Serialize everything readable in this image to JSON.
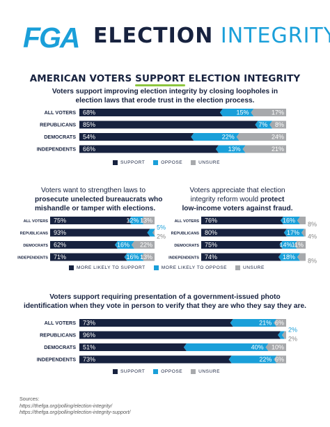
{
  "header": {
    "logo": "FGA",
    "title_bold": "ELECTION",
    "title_light": "INTEGRITY"
  },
  "colors": {
    "navy": "#17223f",
    "blue": "#1a9fd9",
    "gray": "#a7a9ac",
    "green_underline": "#8dc63f"
  },
  "main": {
    "title_pre": "AMERICAN VOTERS ",
    "title_underlined": "SUPPORT",
    "title_post": " ELECTION INTEGRITY",
    "subtitle_line1": "Voters support improving election integrity by closing loopholes in",
    "subtitle_line2": "election laws that erode trust in the election process."
  },
  "left": {
    "sub_line1": "Voters want to strengthen laws to",
    "sub_line2_bold": "prosecute unelected bureaucrats who",
    "sub_line3_bold": "mishandle or tamper with elections."
  },
  "right": {
    "sub_line1": "Voters appreciate that election",
    "sub_line2_pre": "integrity reform would ",
    "sub_line2_bold": "protect",
    "sub_line3_bold": "low-income voters against fraud."
  },
  "bottom": {
    "sub_line1": "Voters support requiring presentation of a government-issued photo",
    "sub_line2": "identification when they vote in person to verify that they are who they say they are."
  },
  "legends": {
    "support": "SUPPORT",
    "oppose": "OPPOSE",
    "unsure": "UNSURE",
    "more_support": "MORE LIKELY TO SUPPORT",
    "more_oppose": "MORE LIKELY TO OPPOSE"
  },
  "sources": {
    "label": "Sources:",
    "link1": "https://thefga.org/polling/election-integrity/",
    "link2": "https://thefga.org/polling/election-integrity-support/"
  },
  "chart_data": [
    {
      "type": "bar",
      "categories": [
        "ALL VOTERS",
        "REPUBLICANS",
        "DEMOCRATS",
        "INDEPENDENTS"
      ],
      "series": [
        {
          "name": "SUPPORT",
          "values": [
            68,
            85,
            54,
            66
          ]
        },
        {
          "name": "OPPOSE",
          "values": [
            15,
            7,
            22,
            13
          ]
        },
        {
          "name": "UNSURE",
          "values": [
            17,
            8,
            24,
            21
          ]
        }
      ]
    },
    {
      "type": "bar",
      "categories": [
        "ALL VOTERS",
        "REPUBLICANS",
        "DEMOCRATS",
        "INDEPENDENTS"
      ],
      "series": [
        {
          "name": "MORE LIKELY TO SUPPORT",
          "values": [
            75,
            93,
            62,
            71
          ]
        },
        {
          "name": "MORE LIKELY TO OPPOSE",
          "values": [
            12,
            5,
            16,
            16
          ]
        },
        {
          "name": "UNSURE",
          "values": [
            13,
            2,
            22,
            13
          ]
        }
      ]
    },
    {
      "type": "bar",
      "categories": [
        "ALL VOTERS",
        "REPUBLICANS",
        "DEMOCRATS",
        "INDEPENDENTS"
      ],
      "series": [
        {
          "name": "MORE LIKELY TO SUPPORT",
          "values": [
            76,
            80,
            75,
            74
          ]
        },
        {
          "name": "MORE LIKELY TO OPPOSE",
          "values": [
            16,
            17,
            14,
            18
          ]
        },
        {
          "name": "UNSURE",
          "values": [
            8,
            4,
            11,
            8
          ]
        }
      ]
    },
    {
      "type": "bar",
      "categories": [
        "ALL VOTERS",
        "REPUBLICANS",
        "DEMOCRATS",
        "INDEPENDENTS"
      ],
      "series": [
        {
          "name": "SUPPORT",
          "values": [
            73,
            96,
            51,
            73
          ]
        },
        {
          "name": "OPPOSE",
          "values": [
            21,
            2,
            40,
            22
          ]
        },
        {
          "name": "UNSURE",
          "values": [
            6,
            2,
            10,
            6
          ]
        }
      ]
    }
  ]
}
